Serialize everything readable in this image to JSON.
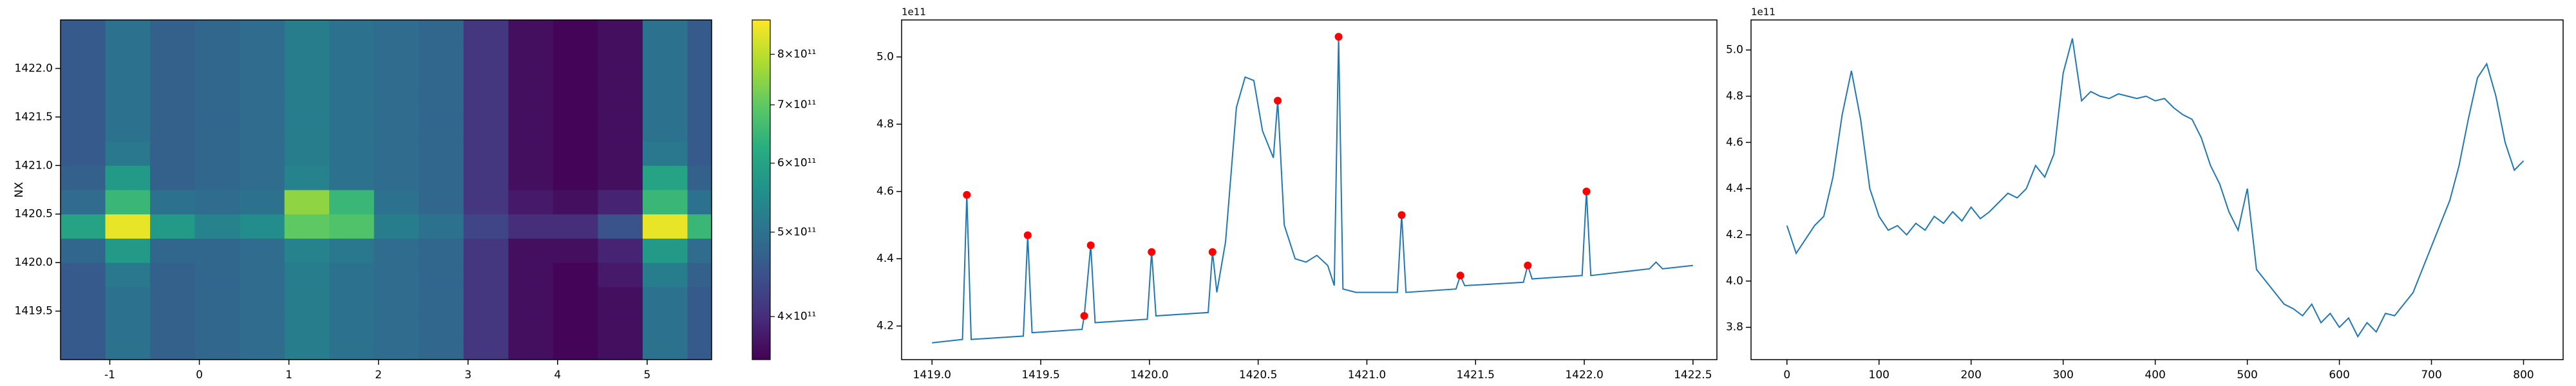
{
  "chart_data": [
    {
      "type": "heatmap",
      "ylabel": "NX",
      "xlim": [
        -1.55,
        5.72
      ],
      "ylim": [
        1419.0,
        1422.5
      ],
      "xticks": [
        -1,
        0,
        1,
        2,
        3,
        4,
        5
      ],
      "yticks": [
        1419.5,
        {
          "value": 1420.0,
          "label": "1420.0"
        },
        1420.5,
        {
          "value": 1421.0,
          "label": "1421.0"
        },
        1421.5,
        {
          "value": 1422.0,
          "label": "1422.0"
        }
      ],
      "x": [
        -1.3,
        -0.8,
        -0.3,
        0.2,
        0.7,
        1.2,
        1.7,
        2.2,
        2.7,
        3.2,
        3.7,
        4.2,
        4.7,
        5.2,
        5.7
      ],
      "y": [
        1419.125,
        1419.375,
        1419.625,
        1419.875,
        1420.125,
        1420.375,
        1420.625,
        1420.875,
        1421.125,
        1421.375,
        1421.625,
        1421.875,
        1422.125,
        1422.375
      ],
      "z": [
        [
          460000000000.0,
          500000000000.0,
          470000000000.0,
          480000000000.0,
          490000000000.0,
          520000000000.0,
          500000000000.0,
          490000000000.0,
          480000000000.0,
          410000000000.0,
          370000000000.0,
          360000000000.0,
          370000000000.0,
          500000000000.0,
          460000000000.0
        ],
        [
          460000000000.0,
          500000000000.0,
          470000000000.0,
          480000000000.0,
          490000000000.0,
          520000000000.0,
          500000000000.0,
          490000000000.0,
          480000000000.0,
          410000000000.0,
          370000000000.0,
          360000000000.0,
          370000000000.0,
          500000000000.0,
          460000000000.0
        ],
        [
          460000000000.0,
          500000000000.0,
          470000000000.0,
          480000000000.0,
          490000000000.0,
          520000000000.0,
          500000000000.0,
          490000000000.0,
          480000000000.0,
          410000000000.0,
          370000000000.0,
          360000000000.0,
          370000000000.0,
          500000000000.0,
          460000000000.0
        ],
        [
          460000000000.0,
          510000000000.0,
          470000000000.0,
          480000000000.0,
          490000000000.0,
          520000000000.0,
          500000000000.0,
          490000000000.0,
          480000000000.0,
          410000000000.0,
          370000000000.0,
          360000000000.0,
          380000000000.0,
          520000000000.0,
          470000000000.0
        ],
        [
          480000000000.0,
          580000000000.0,
          480000000000.0,
          480000000000.0,
          490000000000.0,
          530000000000.0,
          510000000000.0,
          490000000000.0,
          480000000000.0,
          410000000000.0,
          370000000000.0,
          370000000000.0,
          390000000000.0,
          580000000000.0,
          490000000000.0
        ],
        [
          600000000000.0,
          850000000000.0,
          580000000000.0,
          530000000000.0,
          550000000000.0,
          700000000000.0,
          680000000000.0,
          520000000000.0,
          500000000000.0,
          430000000000.0,
          400000000000.0,
          400000000000.0,
          450000000000.0,
          850000000000.0,
          650000000000.0
        ],
        [
          490000000000.0,
          650000000000.0,
          500000000000.0,
          490000000000.0,
          500000000000.0,
          750000000000.0,
          650000000000.0,
          500000000000.0,
          480000000000.0,
          410000000000.0,
          380000000000.0,
          370000000000.0,
          390000000000.0,
          650000000000.0,
          500000000000.0
        ],
        [
          470000000000.0,
          580000000000.0,
          470000000000.0,
          480000000000.0,
          490000000000.0,
          530000000000.0,
          500000000000.0,
          490000000000.0,
          480000000000.0,
          410000000000.0,
          370000000000.0,
          360000000000.0,
          370000000000.0,
          600000000000.0,
          470000000000.0
        ],
        [
          460000000000.0,
          510000000000.0,
          470000000000.0,
          480000000000.0,
          490000000000.0,
          520000000000.0,
          500000000000.0,
          490000000000.0,
          480000000000.0,
          410000000000.0,
          370000000000.0,
          360000000000.0,
          370000000000.0,
          510000000000.0,
          460000000000.0
        ],
        [
          460000000000.0,
          500000000000.0,
          470000000000.0,
          480000000000.0,
          490000000000.0,
          520000000000.0,
          500000000000.0,
          490000000000.0,
          480000000000.0,
          410000000000.0,
          370000000000.0,
          360000000000.0,
          370000000000.0,
          500000000000.0,
          460000000000.0
        ],
        [
          460000000000.0,
          500000000000.0,
          470000000000.0,
          480000000000.0,
          490000000000.0,
          520000000000.0,
          500000000000.0,
          490000000000.0,
          480000000000.0,
          410000000000.0,
          370000000000.0,
          360000000000.0,
          370000000000.0,
          500000000000.0,
          460000000000.0
        ],
        [
          460000000000.0,
          500000000000.0,
          470000000000.0,
          480000000000.0,
          490000000000.0,
          520000000000.0,
          500000000000.0,
          490000000000.0,
          480000000000.0,
          410000000000.0,
          370000000000.0,
          360000000000.0,
          370000000000.0,
          500000000000.0,
          460000000000.0
        ],
        [
          460000000000.0,
          500000000000.0,
          470000000000.0,
          480000000000.0,
          490000000000.0,
          520000000000.0,
          500000000000.0,
          490000000000.0,
          480000000000.0,
          410000000000.0,
          370000000000.0,
          360000000000.0,
          370000000000.0,
          500000000000.0,
          460000000000.0
        ],
        [
          460000000000.0,
          500000000000.0,
          470000000000.0,
          480000000000.0,
          490000000000.0,
          520000000000.0,
          500000000000.0,
          490000000000.0,
          480000000000.0,
          410000000000.0,
          370000000000.0,
          360000000000.0,
          370000000000.0,
          500000000000.0,
          460000000000.0
        ]
      ],
      "colorbar": {
        "cmap": "viridis",
        "scale": "log",
        "lim": [
          357000000000.0,
          876000000000.0
        ],
        "ticks": [
          {
            "value": 400000000000.0,
            "label": "4×10¹¹"
          },
          {
            "value": 500000000000.0,
            "label": "5×10¹¹"
          },
          {
            "value": 600000000000.0,
            "label": "6×10¹¹"
          },
          {
            "value": 700000000000.0,
            "label": "7×10¹¹"
          },
          {
            "value": 800000000000.0,
            "label": "8×10¹¹"
          }
        ]
      }
    },
    {
      "type": "line",
      "offset_text": "1e11",
      "xlim": [
        1418.86,
        1422.61
      ],
      "ylim": [
        4.1,
        5.11
      ],
      "xticks": [
        {
          "value": 1419.0,
          "label": "1419.0"
        },
        1419.5,
        {
          "value": 1420.0,
          "label": "1420.0"
        },
        1420.5,
        {
          "value": 1421.0,
          "label": "1421.0"
        },
        1421.5,
        {
          "value": 1422.0,
          "label": "1422.0"
        },
        1422.5
      ],
      "yticks": [
        4.2,
        4.4,
        4.6,
        4.8,
        {
          "value": 5.0,
          "label": "5.0"
        }
      ],
      "x": [
        1419.0,
        1419.14,
        1419.16,
        1419.18,
        1419.42,
        1419.44,
        1419.46,
        1419.69,
        1419.7,
        1419.73,
        1419.75,
        1419.99,
        1420.01,
        1420.03,
        1420.27,
        1420.29,
        1420.31,
        1420.35,
        1420.4,
        1420.44,
        1420.48,
        1420.52,
        1420.57,
        1420.59,
        1420.62,
        1420.67,
        1420.72,
        1420.77,
        1420.82,
        1420.85,
        1420.87,
        1420.89,
        1420.95,
        1421.14,
        1421.16,
        1421.18,
        1421.41,
        1421.43,
        1421.45,
        1421.72,
        1421.74,
        1421.76,
        1421.99,
        1422.01,
        1422.03,
        1422.3,
        1422.33,
        1422.36,
        1422.5
      ],
      "series": [
        {
          "color": "#1f77b4",
          "values": [
            4.15,
            4.16,
            4.59,
            4.16,
            4.17,
            4.47,
            4.18,
            4.19,
            4.23,
            4.44,
            4.21,
            4.22,
            4.42,
            4.23,
            4.24,
            4.42,
            4.3,
            4.45,
            4.85,
            4.94,
            4.93,
            4.78,
            4.7,
            4.87,
            4.5,
            4.4,
            4.39,
            4.41,
            4.38,
            4.32,
            5.06,
            4.31,
            4.3,
            4.3,
            4.53,
            4.3,
            4.31,
            4.35,
            4.32,
            4.33,
            4.38,
            4.34,
            4.35,
            4.6,
            4.35,
            4.37,
            4.39,
            4.37,
            4.38
          ]
        }
      ],
      "peaks": {
        "color": "#ff0000",
        "x": [
          1419.16,
          1419.44,
          1419.7,
          1419.73,
          1420.01,
          1420.29,
          1420.59,
          1420.87,
          1421.16,
          1421.43,
          1421.74,
          1422.01
        ],
        "values": [
          4.59,
          4.47,
          4.23,
          4.44,
          4.42,
          4.42,
          4.87,
          5.06,
          4.53,
          4.35,
          4.38,
          4.6
        ]
      }
    },
    {
      "type": "line",
      "offset_text": "1e11",
      "xlim": [
        -39,
        843
      ],
      "ylim": [
        3.66,
        5.13
      ],
      "xticks": [
        0,
        100,
        200,
        300,
        400,
        500,
        600,
        700,
        800
      ],
      "yticks": [
        3.8,
        {
          "value": 4.0,
          "label": "4.0"
        },
        4.2,
        4.4,
        4.6,
        4.8,
        {
          "value": 5.0,
          "label": "5.0"
        }
      ],
      "x": [
        0,
        10,
        20,
        30,
        40,
        50,
        60,
        70,
        80,
        90,
        100,
        110,
        120,
        130,
        140,
        150,
        160,
        170,
        180,
        190,
        200,
        210,
        220,
        230,
        240,
        250,
        260,
        270,
        280,
        290,
        300,
        310,
        320,
        330,
        340,
        350,
        360,
        370,
        380,
        390,
        400,
        410,
        420,
        430,
        440,
        450,
        460,
        470,
        480,
        490,
        500,
        510,
        520,
        530,
        540,
        550,
        560,
        570,
        580,
        590,
        600,
        610,
        620,
        630,
        640,
        650,
        660,
        670,
        680,
        690,
        700,
        710,
        720,
        730,
        740,
        750,
        760,
        770,
        780,
        790,
        800
      ],
      "series": [
        {
          "color": "#1f77b4",
          "values": [
            4.24,
            4.12,
            4.18,
            4.24,
            4.28,
            4.45,
            4.72,
            4.91,
            4.7,
            4.4,
            4.28,
            4.22,
            4.24,
            4.2,
            4.25,
            4.22,
            4.28,
            4.25,
            4.3,
            4.26,
            4.32,
            4.27,
            4.3,
            4.34,
            4.38,
            4.36,
            4.4,
            4.5,
            4.45,
            4.55,
            4.9,
            5.05,
            4.78,
            4.82,
            4.8,
            4.79,
            4.81,
            4.8,
            4.79,
            4.8,
            4.78,
            4.79,
            4.75,
            4.72,
            4.7,
            4.62,
            4.5,
            4.42,
            4.3,
            4.22,
            4.4,
            4.05,
            4.0,
            3.95,
            3.9,
            3.88,
            3.85,
            3.9,
            3.82,
            3.86,
            3.8,
            3.84,
            3.76,
            3.82,
            3.78,
            3.86,
            3.85,
            3.9,
            3.95,
            4.05,
            4.15,
            4.25,
            4.35,
            4.5,
            4.7,
            4.88,
            4.94,
            4.8,
            4.6,
            4.48,
            4.52
          ]
        }
      ]
    }
  ]
}
